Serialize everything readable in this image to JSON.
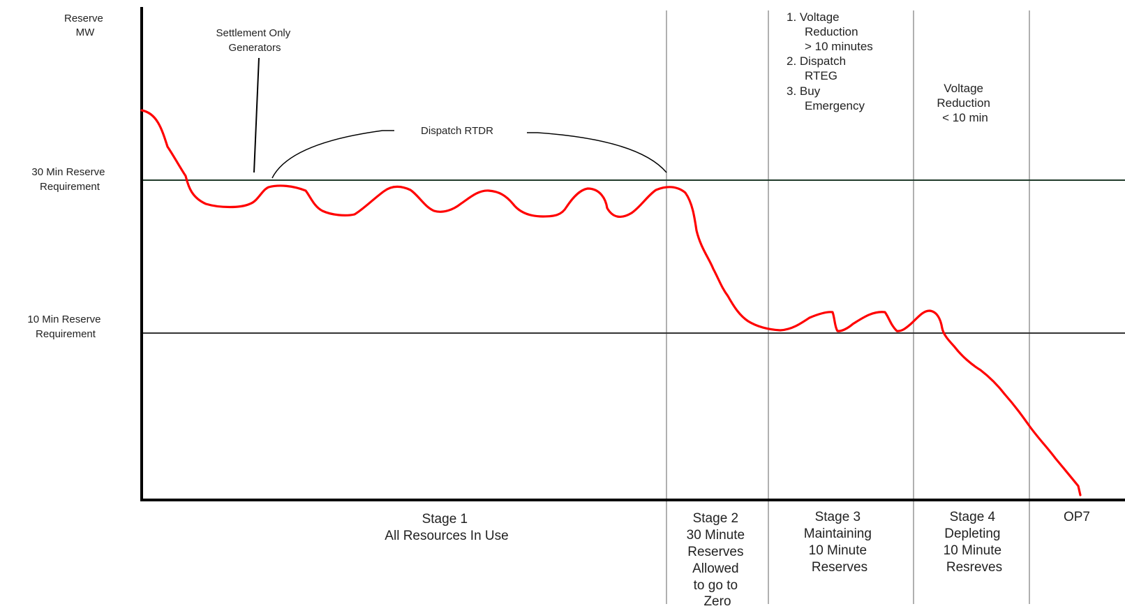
{
  "y_axis_label": [
    "Reserve",
    "MW"
  ],
  "levels": [
    {
      "label": [
        "30 Min Reserve",
        "Requirement"
      ]
    },
    {
      "label": [
        "10 Min Reserve",
        "Requirement"
      ]
    }
  ],
  "annotations": {
    "settlement": [
      "Settlement Only",
      "Generators"
    ],
    "dispatch_rtdr": "Dispatch RTDR",
    "stage3_actions": [
      "1. Voltage",
      "Reduction",
      "> 10 minutes",
      "2. Dispatch",
      "RTEG",
      "3. Buy",
      "Emergency"
    ],
    "stage4_action": [
      "Voltage",
      "Reduction",
      "< 10 min"
    ]
  },
  "stages": [
    {
      "lines": [
        "Stage 1",
        "All Resources In Use"
      ]
    },
    {
      "lines": [
        "Stage 2",
        "30 Minute",
        "Reserves",
        "Allowed",
        "to go to",
        "Zero"
      ]
    },
    {
      "lines": [
        "Stage 3",
        "Maintaining",
        "10 Minute",
        "Reserves"
      ]
    },
    {
      "lines": [
        "Stage 4",
        "Depleting",
        "10 Minute",
        "Resreves"
      ]
    },
    {
      "lines": [
        "OP7"
      ]
    }
  ],
  "colors": {
    "curve": "#ff0000",
    "axis": "#000000",
    "requirement_line": "#1f3a2a",
    "divider": "#b0b0b0",
    "text": "#222222"
  }
}
